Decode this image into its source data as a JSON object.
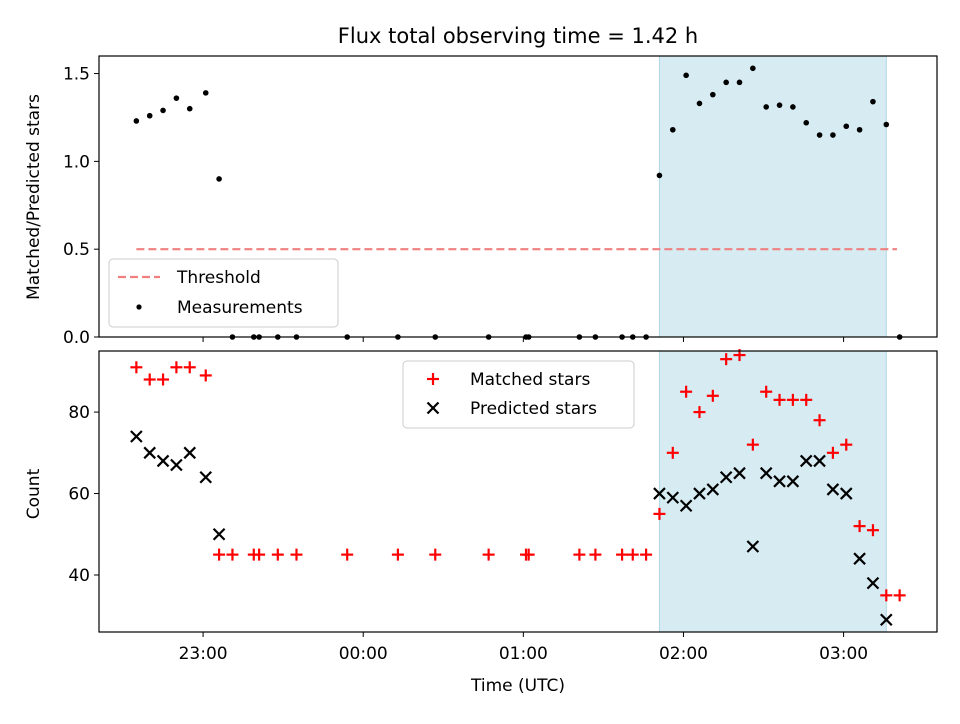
{
  "figure": {
    "title": "Flux total observing time = 1.42 h",
    "xlabel": "Time (UTC)",
    "x_ticks": [
      "23:00",
      "00:00",
      "01:00",
      "02:00",
      "03:00"
    ]
  },
  "colors": {
    "threshold": "#f08080",
    "measurement": "#000000",
    "matched": "#ff0000",
    "predicted": "#000000",
    "span": "#add8e6"
  },
  "chart_data": [
    {
      "type": "scatter",
      "ylabel": "Matched/Predicted stars",
      "ylim": [
        0,
        1.6
      ],
      "y_ticks": [
        "0.0",
        "0.5",
        "1.0",
        "1.5"
      ],
      "y_tick_values": [
        0,
        0.5,
        1.0,
        1.5
      ],
      "xlim": [
        "22:21",
        "03:35"
      ],
      "highlight_span": [
        "01:51",
        "03:16"
      ],
      "legend": {
        "placement": "lower left",
        "threshold_label": "Threshold",
        "measurement_label": "Measurements"
      },
      "threshold": {
        "name": "Threshold",
        "y": 0.5,
        "x_range": [
          "22:35",
          "03:20"
        ]
      },
      "measurements": [
        {
          "x": "22:35",
          "y": 1.23
        },
        {
          "x": "22:40",
          "y": 1.26
        },
        {
          "x": "22:45",
          "y": 1.29
        },
        {
          "x": "22:50",
          "y": 1.36
        },
        {
          "x": "22:55",
          "y": 1.3
        },
        {
          "x": "23:01",
          "y": 1.39
        },
        {
          "x": "23:06",
          "y": 0.9
        },
        {
          "x": "23:11",
          "y": 0.0
        },
        {
          "x": "23:19",
          "y": 0.0
        },
        {
          "x": "23:21",
          "y": 0.0
        },
        {
          "x": "23:28",
          "y": 0.0
        },
        {
          "x": "23:35",
          "y": 0.0
        },
        {
          "x": "23:54",
          "y": 0.0
        },
        {
          "x": "00:13",
          "y": 0.0
        },
        {
          "x": "00:27",
          "y": 0.0
        },
        {
          "x": "00:47",
          "y": 0.0
        },
        {
          "x": "01:01",
          "y": 0.0
        },
        {
          "x": "01:02",
          "y": 0.0
        },
        {
          "x": "01:21",
          "y": 0.0
        },
        {
          "x": "01:27",
          "y": 0.0
        },
        {
          "x": "01:37",
          "y": 0.0
        },
        {
          "x": "01:41",
          "y": 0.0
        },
        {
          "x": "01:46",
          "y": 0.0
        },
        {
          "x": "01:51",
          "y": 0.92
        },
        {
          "x": "01:56",
          "y": 1.18
        },
        {
          "x": "02:01",
          "y": 1.49
        },
        {
          "x": "02:06",
          "y": 1.33
        },
        {
          "x": "02:11",
          "y": 1.38
        },
        {
          "x": "02:16",
          "y": 1.45
        },
        {
          "x": "02:21",
          "y": 1.45
        },
        {
          "x": "02:26",
          "y": 1.53
        },
        {
          "x": "02:31",
          "y": 1.31
        },
        {
          "x": "02:36",
          "y": 1.32
        },
        {
          "x": "02:41",
          "y": 1.31
        },
        {
          "x": "02:46",
          "y": 1.22
        },
        {
          "x": "02:51",
          "y": 1.15
        },
        {
          "x": "02:56",
          "y": 1.15
        },
        {
          "x": "03:01",
          "y": 1.2
        },
        {
          "x": "03:06",
          "y": 1.18
        },
        {
          "x": "03:11",
          "y": 1.34
        },
        {
          "x": "03:16",
          "y": 1.21
        },
        {
          "x": "03:21",
          "y": 0.0
        }
      ]
    },
    {
      "type": "scatter",
      "ylabel": "Count",
      "ylim": [
        26,
        95
      ],
      "y_ticks": [
        "40",
        "60",
        "80"
      ],
      "y_tick_values": [
        40,
        60,
        80
      ],
      "xlim": [
        "22:21",
        "03:35"
      ],
      "highlight_span": [
        "01:51",
        "03:16"
      ],
      "legend": {
        "placement": "upper center"
      },
      "series": [
        {
          "name": "Matched stars",
          "marker": "+",
          "points": [
            {
              "x": "22:35",
              "y": 91
            },
            {
              "x": "22:40",
              "y": 88
            },
            {
              "x": "22:45",
              "y": 88
            },
            {
              "x": "22:50",
              "y": 91
            },
            {
              "x": "22:55",
              "y": 91
            },
            {
              "x": "23:01",
              "y": 89
            },
            {
              "x": "23:06",
              "y": 45
            },
            {
              "x": "23:11",
              "y": 45
            },
            {
              "x": "23:19",
              "y": 45
            },
            {
              "x": "23:21",
              "y": 45
            },
            {
              "x": "23:28",
              "y": 45
            },
            {
              "x": "23:35",
              "y": 45
            },
            {
              "x": "23:54",
              "y": 45
            },
            {
              "x": "00:13",
              "y": 45
            },
            {
              "x": "00:27",
              "y": 45
            },
            {
              "x": "00:47",
              "y": 45
            },
            {
              "x": "01:01",
              "y": 45
            },
            {
              "x": "01:02",
              "y": 45
            },
            {
              "x": "01:21",
              "y": 45
            },
            {
              "x": "01:27",
              "y": 45
            },
            {
              "x": "01:37",
              "y": 45
            },
            {
              "x": "01:41",
              "y": 45
            },
            {
              "x": "01:46",
              "y": 45
            },
            {
              "x": "01:51",
              "y": 55
            },
            {
              "x": "01:56",
              "y": 70
            },
            {
              "x": "02:01",
              "y": 85
            },
            {
              "x": "02:06",
              "y": 80
            },
            {
              "x": "02:11",
              "y": 84
            },
            {
              "x": "02:16",
              "y": 93
            },
            {
              "x": "02:21",
              "y": 94
            },
            {
              "x": "02:26",
              "y": 72
            },
            {
              "x": "02:31",
              "y": 85
            },
            {
              "x": "02:36",
              "y": 83
            },
            {
              "x": "02:41",
              "y": 83
            },
            {
              "x": "02:46",
              "y": 83
            },
            {
              "x": "02:51",
              "y": 78
            },
            {
              "x": "02:56",
              "y": 70
            },
            {
              "x": "03:01",
              "y": 72
            },
            {
              "x": "03:06",
              "y": 52
            },
            {
              "x": "03:11",
              "y": 51
            },
            {
              "x": "03:16",
              "y": 35
            },
            {
              "x": "03:21",
              "y": 35
            }
          ]
        },
        {
          "name": "Predicted stars",
          "marker": "x",
          "points": [
            {
              "x": "22:35",
              "y": 74
            },
            {
              "x": "22:40",
              "y": 70
            },
            {
              "x": "22:45",
              "y": 68
            },
            {
              "x": "22:50",
              "y": 67
            },
            {
              "x": "22:55",
              "y": 70
            },
            {
              "x": "23:01",
              "y": 64
            },
            {
              "x": "23:06",
              "y": 50
            },
            {
              "x": "01:51",
              "y": 60
            },
            {
              "x": "01:56",
              "y": 59
            },
            {
              "x": "02:01",
              "y": 57
            },
            {
              "x": "02:06",
              "y": 60
            },
            {
              "x": "02:11",
              "y": 61
            },
            {
              "x": "02:16",
              "y": 64
            },
            {
              "x": "02:21",
              "y": 65
            },
            {
              "x": "02:26",
              "y": 47
            },
            {
              "x": "02:31",
              "y": 65
            },
            {
              "x": "02:36",
              "y": 63
            },
            {
              "x": "02:41",
              "y": 63
            },
            {
              "x": "02:46",
              "y": 68
            },
            {
              "x": "02:51",
              "y": 68
            },
            {
              "x": "02:56",
              "y": 61
            },
            {
              "x": "03:01",
              "y": 60
            },
            {
              "x": "03:06",
              "y": 44
            },
            {
              "x": "03:11",
              "y": 38
            },
            {
              "x": "03:16",
              "y": 29
            }
          ]
        }
      ]
    }
  ]
}
